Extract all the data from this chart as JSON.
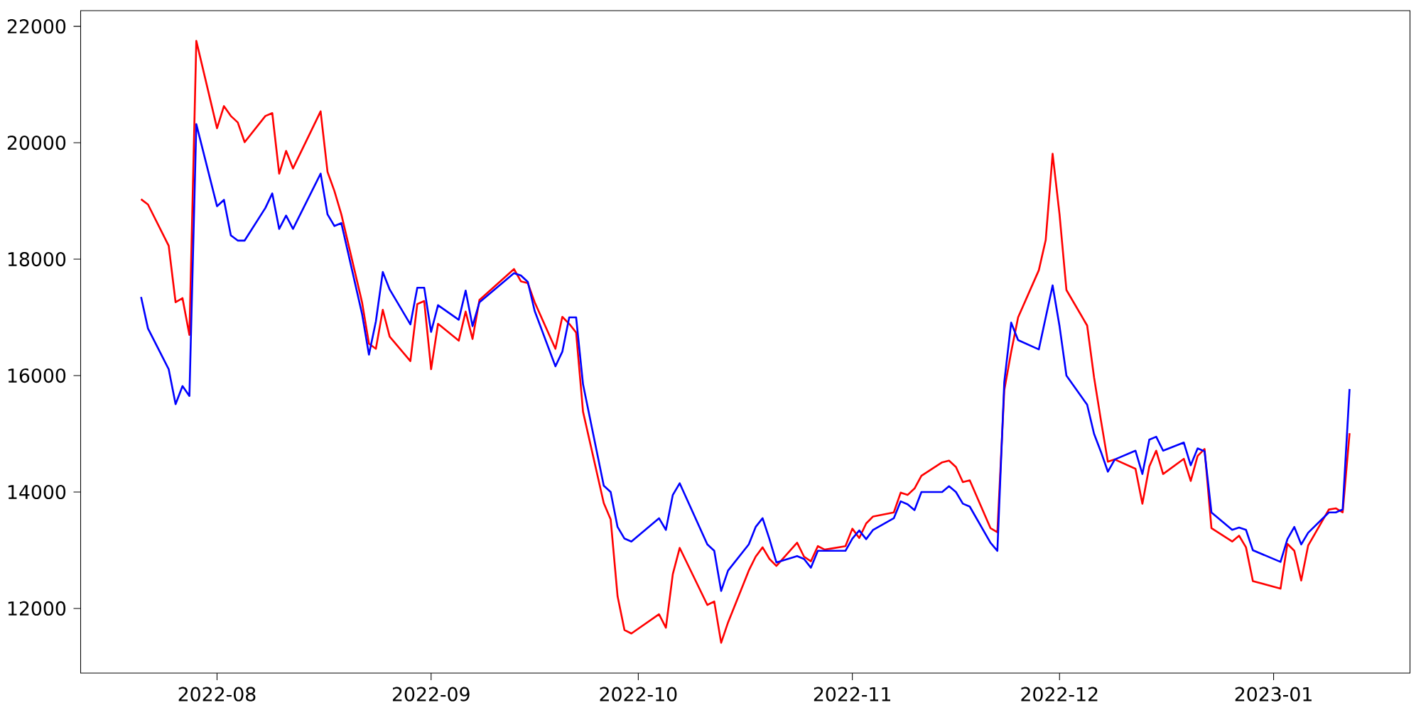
{
  "chart_data": {
    "type": "line",
    "x": [
      "2022-07-21",
      "2022-07-22",
      "2022-07-25",
      "2022-07-26",
      "2022-07-27",
      "2022-07-28",
      "2022-07-29",
      "2022-08-01",
      "2022-08-02",
      "2022-08-03",
      "2022-08-04",
      "2022-08-05",
      "2022-08-08",
      "2022-08-09",
      "2022-08-10",
      "2022-08-11",
      "2022-08-12",
      "2022-08-16",
      "2022-08-17",
      "2022-08-18",
      "2022-08-19",
      "2022-08-22",
      "2022-08-23",
      "2022-08-24",
      "2022-08-25",
      "2022-08-26",
      "2022-08-29",
      "2022-08-30",
      "2022-08-31",
      "2022-09-01",
      "2022-09-02",
      "2022-09-05",
      "2022-09-06",
      "2022-09-07",
      "2022-09-08",
      "2022-09-13",
      "2022-09-14",
      "2022-09-15",
      "2022-09-16",
      "2022-09-19",
      "2022-09-20",
      "2022-09-21",
      "2022-09-22",
      "2022-09-23",
      "2022-09-26",
      "2022-09-27",
      "2022-09-28",
      "2022-09-29",
      "2022-09-30",
      "2022-10-04",
      "2022-10-05",
      "2022-10-06",
      "2022-10-07",
      "2022-10-11",
      "2022-10-12",
      "2022-10-13",
      "2022-10-14",
      "2022-10-17",
      "2022-10-18",
      "2022-10-19",
      "2022-10-20",
      "2022-10-21",
      "2022-10-24",
      "2022-10-25",
      "2022-10-26",
      "2022-10-27",
      "2022-10-28",
      "2022-10-31",
      "2022-11-01",
      "2022-11-02",
      "2022-11-03",
      "2022-11-04",
      "2022-11-07",
      "2022-11-08",
      "2022-11-09",
      "2022-11-10",
      "2022-11-11",
      "2022-11-14",
      "2022-11-15",
      "2022-11-16",
      "2022-11-17",
      "2022-11-18",
      "2022-11-21",
      "2022-11-22",
      "2022-11-23",
      "2022-11-24",
      "2022-11-25",
      "2022-11-28",
      "2022-11-29",
      "2022-11-30",
      "2022-12-01",
      "2022-12-02",
      "2022-12-05",
      "2022-12-06",
      "2022-12-07",
      "2022-12-08",
      "2022-12-09",
      "2022-12-12",
      "2022-12-13",
      "2022-12-14",
      "2022-12-15",
      "2022-12-16",
      "2022-12-19",
      "2022-12-20",
      "2022-12-21",
      "2022-12-22",
      "2022-12-23",
      "2022-12-26",
      "2022-12-27",
      "2022-12-28",
      "2022-12-29",
      "2023-01-02",
      "2023-01-03",
      "2023-01-04",
      "2023-01-05",
      "2023-01-06",
      "2023-01-09",
      "2023-01-10",
      "2023-01-11",
      "2023-01-12"
    ],
    "series": [
      {
        "color": "#ff0000",
        "values": [
          19030,
          18940,
          18230,
          17260,
          17330,
          16700,
          21750,
          20250,
          20630,
          20460,
          20350,
          20010,
          20460,
          20510,
          19470,
          19860,
          19560,
          20540,
          19500,
          19170,
          18770,
          17260,
          16550,
          16460,
          17130,
          16670,
          16250,
          17230,
          17280,
          16110,
          16890,
          16600,
          17100,
          16630,
          17300,
          17830,
          17620,
          17590,
          17260,
          16460,
          17010,
          16890,
          16740,
          15380,
          13810,
          13530,
          12210,
          11630,
          11570,
          11900,
          11670,
          12590,
          13040,
          12060,
          12120,
          11410,
          11760,
          12650,
          12890,
          13050,
          12850,
          12730,
          13130,
          12890,
          12810,
          13070,
          13010,
          13070,
          13370,
          13210,
          13460,
          13580,
          13650,
          13990,
          13950,
          14060,
          14280,
          14510,
          14540,
          14430,
          14170,
          14200,
          13380,
          13310,
          15750,
          16410,
          17000,
          17810,
          18330,
          19810,
          18770,
          17470,
          16860,
          15970,
          15230,
          14520,
          14560,
          14400,
          13800,
          14440,
          14710,
          14310,
          14570,
          14190,
          14620,
          14740,
          13380,
          13150,
          13250,
          13050,
          12470,
          12340,
          13110,
          12990,
          12480,
          13080,
          13700,
          13720,
          13650,
          15010
        ]
      },
      {
        "color": "#0000ff",
        "values": [
          17350,
          16810,
          16110,
          15510,
          15820,
          15650,
          20320,
          18910,
          19020,
          18410,
          18320,
          18320,
          18880,
          19130,
          18520,
          18750,
          18520,
          19470,
          18770,
          18570,
          18620,
          17060,
          16360,
          16930,
          17780,
          17480,
          16880,
          17510,
          17510,
          16750,
          17210,
          16960,
          17460,
          16850,
          17260,
          17760,
          17720,
          17610,
          17110,
          16160,
          16410,
          17000,
          17000,
          15850,
          14110,
          14000,
          13400,
          13200,
          13150,
          13550,
          13350,
          13950,
          14150,
          13100,
          12990,
          12300,
          12650,
          13100,
          13400,
          13550,
          13190,
          12790,
          12900,
          12850,
          12700,
          12990,
          12990,
          12990,
          13200,
          13340,
          13190,
          13350,
          13550,
          13840,
          13790,
          13690,
          14000,
          14000,
          14100,
          14000,
          13800,
          13750,
          13130,
          12990,
          15890,
          16910,
          16610,
          16450,
          17000,
          17550,
          16850,
          16000,
          15500,
          15000,
          14690,
          14350,
          14560,
          14710,
          14310,
          14900,
          14950,
          14710,
          14850,
          14460,
          14750,
          14700,
          13650,
          13350,
          13390,
          13350,
          13000,
          12800,
          13190,
          13400,
          13100,
          13300,
          13650,
          13650,
          13700,
          15770
        ]
      }
    ],
    "xlim": [
      "2022-07-12T06:00",
      "2023-01-20T18:00"
    ],
    "ylim": [
      10890,
      22270
    ],
    "xticks": [
      {
        "value": "2022-08-01",
        "label": "2022-08"
      },
      {
        "value": "2022-09-01",
        "label": "2022-09"
      },
      {
        "value": "2022-10-01",
        "label": "2022-10"
      },
      {
        "value": "2022-11-01",
        "label": "2022-11"
      },
      {
        "value": "2022-12-01",
        "label": "2022-12"
      },
      {
        "value": "2023-01-01",
        "label": "2023-01"
      }
    ],
    "yticks": [
      12000,
      14000,
      16000,
      18000,
      20000,
      22000
    ]
  }
}
